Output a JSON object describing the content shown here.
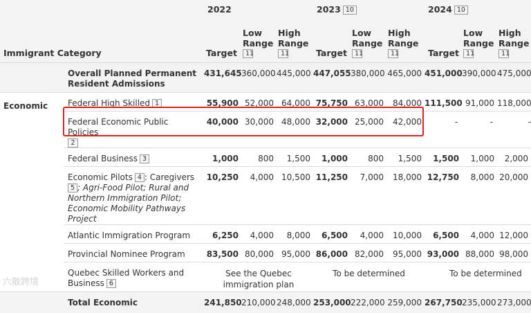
{
  "header": {
    "years": [
      {
        "label": "2022",
        "footnote": ""
      },
      {
        "label": "2023",
        "footnote": "10"
      },
      {
        "label": "2024",
        "footnote": "10"
      }
    ],
    "category_label": "Immigrant Category",
    "target_label": "Target",
    "low_label": "Low Range",
    "high_label": "High Range",
    "range_footnote": "11"
  },
  "overall": {
    "name": "Overall Planned Permanent Resident Admissions",
    "values": [
      "431,645",
      "360,000",
      "445,000",
      "447,055",
      "380,000",
      "465,000",
      "451,000",
      "390,000",
      "475,000"
    ]
  },
  "economic_label": "Economic",
  "rows": [
    {
      "name": "Federal High Skilled",
      "fn": "1",
      "values": [
        "55,900",
        "52,000",
        "64,000",
        "75,750",
        "63,000",
        "84,000",
        "111,500",
        "91,000",
        "118,000"
      ]
    },
    {
      "name": "Federal Economic Public Policies",
      "fn": "2",
      "values": [
        "40,000",
        "30,000",
        "48,000",
        "32,000",
        "25,000",
        "42,000",
        "-",
        "-",
        "-"
      ]
    },
    {
      "name": "Federal Business",
      "fn": "3",
      "values": [
        "1,000",
        "800",
        "1,500",
        "1,000",
        "800",
        "1,500",
        "1,500",
        "1,000",
        "2,000"
      ]
    },
    {
      "name_prefix": "Economic Pilots",
      "fn": "4",
      "name_mid": ": Caregivers",
      "fn2": "5",
      "name_italic": "; Agri-Food Pilot; Rural and Northern Immigration Pilot; Economic Mobility Pathways Project",
      "values": [
        "10,250",
        "4,000",
        "10,500",
        "11,250",
        "7,000",
        "18,000",
        "12,750",
        "8,000",
        "20,000"
      ]
    },
    {
      "name": "Atlantic Immigration Program",
      "values": [
        "6,250",
        "4,000",
        "8,000",
        "6,500",
        "4,000",
        "10,000",
        "6,500",
        "4,000",
        "12,000"
      ]
    },
    {
      "name": "Provincial Nominee Program",
      "values": [
        "83,500",
        "80,000",
        "95,000",
        "86,000",
        "82,000",
        "95,000",
        "93,000",
        "88,000",
        "98,000"
      ]
    }
  ],
  "quebec": {
    "name": "Quebec Skilled Workers and Business",
    "fn": "6",
    "y2022": "See the Quebec immigration plan",
    "y2023": "To be determined",
    "y2024": "To be determined"
  },
  "total": {
    "name": "Total Economic",
    "values": [
      "241,850",
      "210,000",
      "248,000",
      "253,000",
      "222,000",
      "259,000",
      "267,750",
      "235,000",
      "273,000"
    ]
  },
  "watermark": "六散跨境",
  "highlight_color": "#e02020"
}
